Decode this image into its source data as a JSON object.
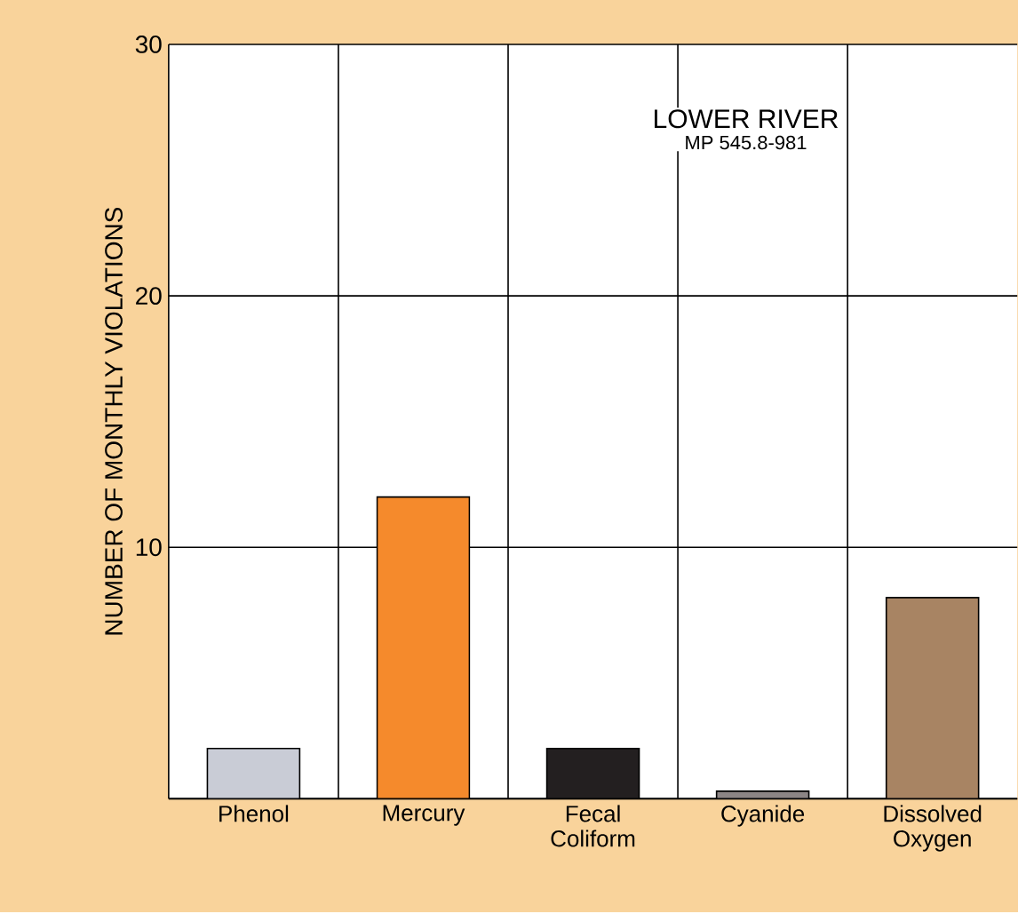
{
  "chart_data": {
    "type": "bar",
    "ylabel": "NUMBER OF MONTHLY VIOLATIONS",
    "categories": [
      "Phenol",
      "Mercury",
      "Fecal Coliform",
      "Cyanide",
      "Dissolved Oxygen"
    ],
    "values": [
      2,
      12,
      2,
      0.3,
      8
    ],
    "colors": [
      "#c9ccd6",
      "#f58a2c",
      "#231f20",
      "#8c8585",
      "#a88463"
    ],
    "ylim": [
      0,
      30
    ],
    "yticks": [
      {
        "value": 0,
        "label": null
      },
      10,
      20,
      30
    ],
    "grid": true,
    "annotations": [
      "LOWER RIVER",
      "MP 545.8-981"
    ]
  }
}
